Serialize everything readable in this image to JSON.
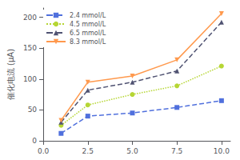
{
  "chart_data": {
    "type": "line",
    "ylabel": "催化电流 (μA)",
    "x": [
      1.0,
      2.5,
      5.0,
      7.5,
      10.0
    ],
    "series": [
      {
        "name": "2.4 mmol/L",
        "values": [
          12,
          40,
          45,
          54,
          65
        ],
        "marker": "square",
        "line_style": "dashed"
      },
      {
        "name": "4.5 mmol/L",
        "values": [
          25,
          58,
          75,
          89,
          121
        ],
        "marker": "circle",
        "line_style": "dotted"
      },
      {
        "name": "6.5 mmol/L",
        "values": [
          30,
          82,
          95,
          113,
          192
        ],
        "marker": "triangle-up",
        "line_style": "dashed"
      },
      {
        "name": "8.3 mmol/L",
        "values": [
          33,
          95,
          105,
          131,
          206
        ],
        "marker": "triangle-down",
        "line_style": "solid"
      }
    ],
    "xlim": [
      0.0,
      10.5
    ],
    "xticks": [
      {
        "value": 0,
        "label": "0.0"
      },
      2.5,
      {
        "value": 5,
        "label": "5.0"
      },
      7.5,
      {
        "value": 10,
        "label": "10.0"
      }
    ],
    "ylim": [
      0,
      215
    ],
    "yticks": [
      0,
      50,
      100,
      150,
      200
    ],
    "grid": false,
    "legend": "upper left"
  }
}
